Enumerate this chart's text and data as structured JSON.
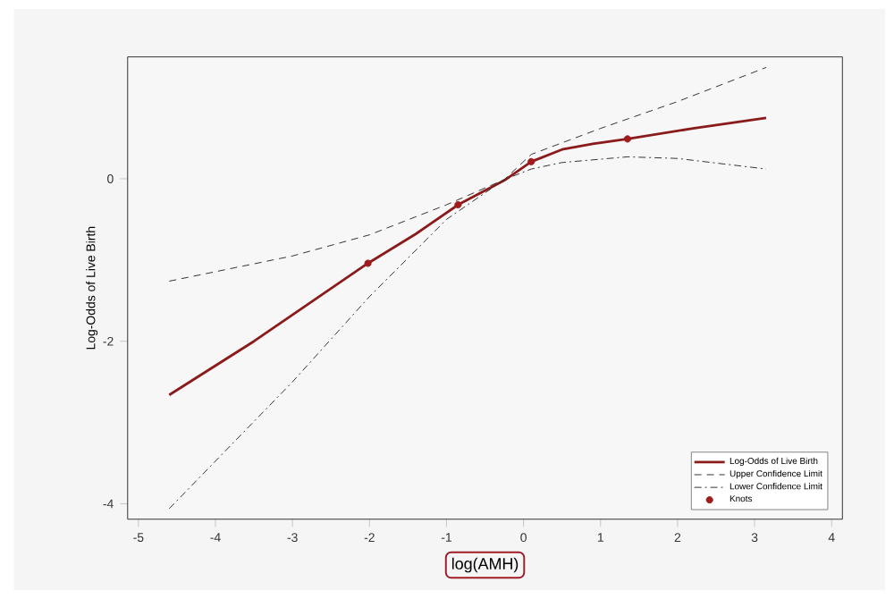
{
  "chart_data": {
    "type": "line",
    "xlabel": "log(AMH)",
    "ylabel": "Log-Odds of Live Birth",
    "xlim": [
      -5.14,
      4.14
    ],
    "ylim": [
      -4.19,
      1.5
    ],
    "xticks": [
      -5,
      -4,
      -3,
      -2,
      -1,
      0,
      1,
      2,
      3,
      4
    ],
    "yticks": [
      -4,
      -2,
      0
    ],
    "grid": false,
    "legend": "bottom right",
    "series": [
      {
        "name": "Log-Odds of Live Birth",
        "type": "line",
        "color": "#8b1a1a",
        "line_style": "solid",
        "x": [
          -4.6,
          -3.5,
          -2.02,
          -1.4,
          -0.85,
          -0.25,
          0.1,
          0.5,
          0.9,
          1.35,
          2.2,
          3.15
        ],
        "values": [
          -2.66,
          -2.0,
          -1.04,
          -0.68,
          -0.32,
          -0.02,
          0.21,
          0.36,
          0.43,
          0.49,
          0.62,
          0.75
        ]
      },
      {
        "name": "Upper Confidence Limit",
        "type": "line",
        "color": "#333333",
        "line_style": "dashed",
        "x": [
          -4.6,
          -3,
          -2,
          -1,
          -0.25,
          0.1,
          1,
          2,
          3.15
        ],
        "values": [
          -1.26,
          -0.95,
          -0.69,
          -0.32,
          -0.01,
          0.3,
          0.62,
          0.95,
          1.37
        ]
      },
      {
        "name": "Lower Confidence Limit",
        "type": "line",
        "color": "#333333",
        "line_style": "dashdot",
        "x": [
          -4.6,
          -3,
          -2,
          -1,
          -0.25,
          0.1,
          0.5,
          1.35,
          2,
          3.15
        ],
        "values": [
          -4.06,
          -2.5,
          -1.45,
          -0.5,
          -0.01,
          0.12,
          0.2,
          0.27,
          0.25,
          0.12
        ]
      },
      {
        "name": "Knots",
        "type": "scatter",
        "color": "#a01c1c",
        "marker": "circle",
        "x": [
          -2.02,
          -0.85,
          0.1,
          1.35
        ],
        "values": [
          -1.04,
          -0.32,
          0.21,
          0.49
        ]
      }
    ]
  }
}
